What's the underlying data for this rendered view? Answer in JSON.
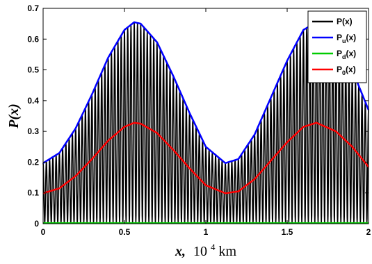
{
  "chart_data": {
    "type": "line",
    "xlabel": {
      "var": "x,",
      "unit_base": "10",
      "unit_exp": "4",
      "unit_tail": " km"
    },
    "ylabel": "P(x)",
    "xlim": [
      0,
      2
    ],
    "ylim": [
      0,
      0.7
    ],
    "xticks": [
      "0",
      "0.5",
      "1",
      "1.5",
      "2"
    ],
    "xtick_values": [
      0,
      0.5,
      1,
      1.5,
      2
    ],
    "yticks": [
      "0",
      "0.1",
      "0.2",
      "0.3",
      "0.4",
      "0.5",
      "0.6",
      "0.7"
    ],
    "ytick_values": [
      0,
      0.1,
      0.2,
      0.3,
      0.4,
      0.5,
      0.6,
      0.7
    ],
    "grid": false,
    "legend_position": "top-right",
    "series": [
      {
        "name": "P(x)",
        "legend": {
          "base": "P(x)",
          "sub": ""
        },
        "color": "#000000",
        "kind": "fast-oscillation between Pd and Pu",
        "oscillation_cycles": 100
      },
      {
        "name": "Pu(x)",
        "legend": {
          "base": "P",
          "sub": "u",
          "tail": "(x)"
        },
        "color": "#0000ff",
        "x": [
          0,
          0.1,
          0.2,
          0.3,
          0.4,
          0.5,
          0.56,
          0.6,
          0.7,
          0.8,
          0.9,
          1.0,
          1.12,
          1.2,
          1.3,
          1.4,
          1.5,
          1.6,
          1.68,
          1.8,
          1.9,
          2.0
        ],
        "y": [
          0.197,
          0.23,
          0.31,
          0.42,
          0.54,
          0.63,
          0.655,
          0.65,
          0.59,
          0.48,
          0.36,
          0.25,
          0.197,
          0.21,
          0.29,
          0.41,
          0.53,
          0.63,
          0.655,
          0.6,
          0.5,
          0.37
        ]
      },
      {
        "name": "Pd(x)",
        "legend": {
          "base": "P",
          "sub": "d",
          "tail": "(x)"
        },
        "color": "#00cc00",
        "x": [
          0,
          2
        ],
        "y": [
          0.002,
          0.002
        ]
      },
      {
        "name": "P0(x)",
        "legend": {
          "base": "P",
          "sub": "0",
          "tail": "(x)"
        },
        "color": "#ff0000",
        "x": [
          0,
          0.1,
          0.2,
          0.3,
          0.4,
          0.5,
          0.56,
          0.6,
          0.7,
          0.8,
          0.9,
          1.0,
          1.12,
          1.2,
          1.3,
          1.4,
          1.5,
          1.6,
          1.68,
          1.8,
          1.9,
          2.0
        ],
        "y": [
          0.099,
          0.115,
          0.155,
          0.21,
          0.27,
          0.315,
          0.328,
          0.325,
          0.295,
          0.24,
          0.18,
          0.125,
          0.099,
          0.105,
          0.145,
          0.205,
          0.265,
          0.315,
          0.328,
          0.3,
          0.25,
          0.185
        ]
      }
    ]
  }
}
